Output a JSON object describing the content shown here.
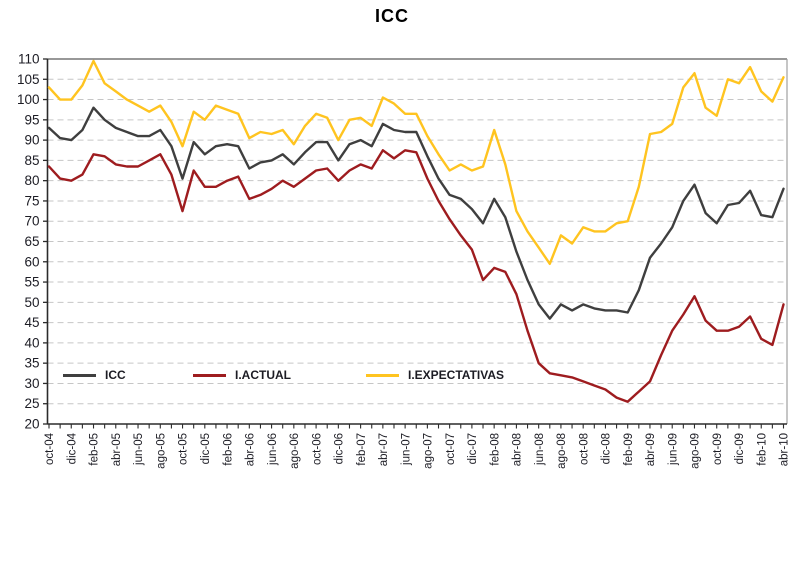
{
  "title": "ICC",
  "legend": {
    "items": [
      {
        "label": "ICC",
        "color": "#3f3f3f"
      },
      {
        "label": "I.ACTUAL",
        "color": "#9e1c1f"
      },
      {
        "label": "I.EXPECTATIVAS",
        "color": "#ffc420"
      }
    ]
  },
  "axes": {
    "y_min": 20,
    "y_max": 110,
    "y_step": 5,
    "x_label_every": 2
  },
  "colors": {
    "grid": "#c6c6c6",
    "axis": "#2b2b2b",
    "top_border": "#5a5a5a",
    "right_border": "#a0a0a0",
    "tick_text": "#1c1c24"
  },
  "chart_data": {
    "type": "line",
    "title": "ICC",
    "xlabel": "",
    "ylabel": "",
    "ylim": [
      20,
      110
    ],
    "ytick_step": 5,
    "grid": "horizontal-dashed",
    "legend_position": "inside-bottom-left",
    "categories": [
      "oct-04",
      "nov-04",
      "dic-04",
      "ene-05",
      "feb-05",
      "mar-05",
      "abr-05",
      "may-05",
      "jun-05",
      "jul-05",
      "ago-05",
      "sep-05",
      "oct-05",
      "nov-05",
      "dic-05",
      "ene-06",
      "feb-06",
      "mar-06",
      "abr-06",
      "may-06",
      "jun-06",
      "jul-06",
      "ago-06",
      "sep-06",
      "oct-06",
      "nov-06",
      "dic-06",
      "ene-07",
      "feb-07",
      "mar-07",
      "abr-07",
      "may-07",
      "jun-07",
      "jul-07",
      "ago-07",
      "sep-07",
      "oct-07",
      "nov-07",
      "dic-07",
      "ene-08",
      "feb-08",
      "mar-08",
      "abr-08",
      "may-08",
      "jun-08",
      "jul-08",
      "ago-08",
      "sep-08",
      "oct-08",
      "nov-08",
      "dic-08",
      "ene-09",
      "feb-09",
      "mar-09",
      "abr-09",
      "may-09",
      "jun-09",
      "jul-09",
      "ago-09",
      "sep-09",
      "oct-09",
      "nov-09",
      "dic-09",
      "ene-10",
      "feb-10",
      "mar-10",
      "abr-10"
    ],
    "series": [
      {
        "name": "ICC",
        "color": "#3f3f3f",
        "values": [
          93,
          90.5,
          90,
          92.5,
          98,
          95,
          93,
          92,
          91,
          91,
          92.5,
          88.5,
          80.5,
          89.5,
          86.5,
          88.5,
          89,
          88.5,
          83,
          84.5,
          85,
          86.5,
          84,
          87,
          89.5,
          89.5,
          85,
          89,
          90,
          88.5,
          94,
          92.5,
          92,
          92,
          86,
          80.5,
          76.5,
          75.5,
          73,
          69.5,
          75.5,
          71,
          62.5,
          55.5,
          49.5,
          46,
          49.5,
          48,
          49.5,
          48.5,
          48,
          48,
          47.5,
          53,
          61,
          64.5,
          68.5,
          75,
          79,
          72,
          69.5,
          74,
          74.5,
          77.5,
          71.5,
          71,
          78
        ]
      },
      {
        "name": "I.ACTUAL",
        "color": "#9e1c1f",
        "values": [
          83.5,
          80.5,
          80,
          81.5,
          86.5,
          86,
          84,
          83.5,
          83.5,
          85,
          86.5,
          81.5,
          72.5,
          82.5,
          78.5,
          78.5,
          80,
          81,
          75.5,
          76.5,
          78,
          80,
          78.5,
          80.5,
          82.5,
          83,
          80,
          82.5,
          84,
          83,
          87.5,
          85.5,
          87.5,
          87,
          80.5,
          75,
          70.5,
          66.5,
          63,
          55.5,
          58.5,
          57.5,
          52,
          43,
          35,
          32.5,
          32,
          31.5,
          30.5,
          29.5,
          28.5,
          26.5,
          25.5,
          28,
          30.5,
          37,
          43,
          47,
          51.5,
          45.5,
          43,
          43,
          44,
          46.5,
          41,
          39.5,
          49.5
        ]
      },
      {
        "name": "I.EXPECTATIVAS",
        "color": "#ffc420",
        "values": [
          103,
          100,
          100,
          103.5,
          109.5,
          104,
          102,
          100,
          98.5,
          97,
          98.5,
          94.5,
          88.5,
          97,
          95,
          98.5,
          97.5,
          96.5,
          90.5,
          92,
          91.5,
          92.5,
          89,
          93.5,
          96.5,
          95.5,
          90,
          95,
          95.5,
          93.5,
          100.5,
          99,
          96.5,
          96.5,
          91,
          86.5,
          82.5,
          84,
          82.5,
          83.5,
          92.5,
          84,
          72.5,
          67.5,
          63.5,
          59.5,
          66.5,
          64.5,
          68.5,
          67.5,
          67.5,
          69.5,
          70,
          78.5,
          91.5,
          92,
          94,
          103,
          106.5,
          98,
          96,
          105,
          104,
          108,
          102,
          99.5,
          105.5
        ]
      }
    ]
  }
}
